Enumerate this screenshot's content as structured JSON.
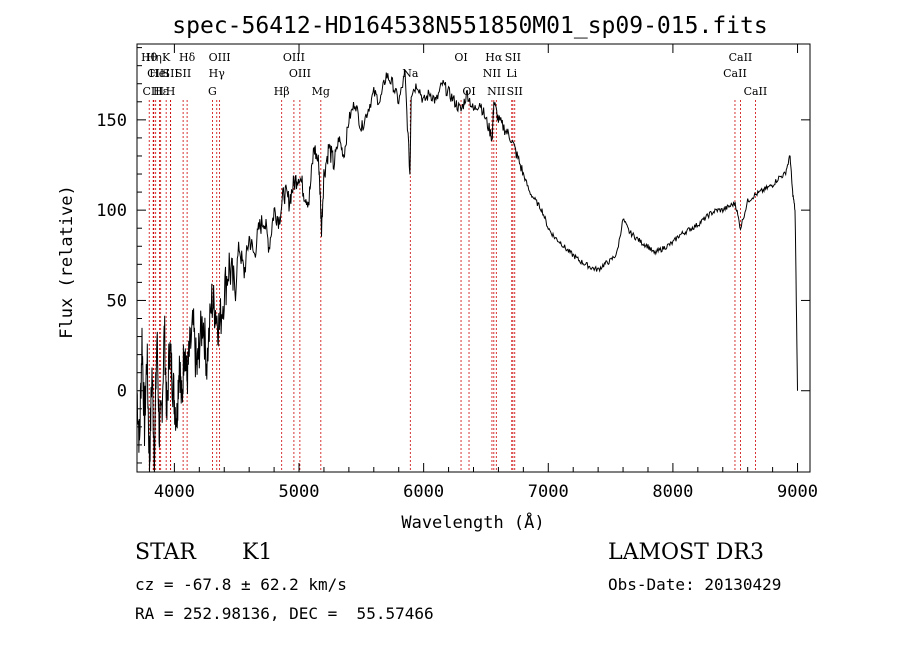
{
  "chart_data": {
    "type": "line",
    "title": "spec-56412-HD164538N551850M01_sp09-015.fits",
    "xlabel": "Wavelength (Å)",
    "ylabel": "Flux (relative)",
    "xlim": [
      3700,
      9100
    ],
    "ylim": [
      -45,
      192
    ],
    "xticks": [
      4000,
      5000,
      6000,
      7000,
      8000,
      9000
    ],
    "yticks": [
      0,
      50,
      100,
      150
    ],
    "grid": false,
    "line_color": "#000000",
    "marker_line_color": "#cc0000",
    "series": [
      {
        "x": [
          3700,
          3720,
          3740,
          3760,
          3780,
          3800,
          3820,
          3840,
          3860,
          3880,
          3900,
          3920,
          3940,
          3960,
          3980,
          4000,
          4020,
          4040,
          4060,
          4080,
          4100,
          4120,
          4150,
          4180,
          4200,
          4230,
          4260,
          4300,
          4330,
          4360,
          4400,
          4440,
          4480,
          4520,
          4560,
          4600,
          4640,
          4680,
          4720,
          4760,
          4800,
          4840,
          4880,
          4920,
          4960,
          5000,
          5040,
          5080,
          5120,
          5160,
          5180,
          5200,
          5240,
          5280,
          5320,
          5360,
          5400,
          5450,
          5500,
          5550,
          5600,
          5650,
          5700,
          5750,
          5800,
          5850,
          5890,
          5900,
          5950,
          6000,
          6050,
          6100,
          6150,
          6200,
          6250,
          6300,
          6350,
          6400,
          6450,
          6500,
          6550,
          6563,
          6600,
          6650,
          6700,
          6750,
          6800,
          6850,
          6900,
          6950,
          7000,
          7050,
          7100,
          7150,
          7200,
          7250,
          7300,
          7350,
          7400,
          7450,
          7500,
          7550,
          7600,
          7650,
          7700,
          7750,
          7800,
          7850,
          7900,
          7950,
          8000,
          8050,
          8100,
          8150,
          8200,
          8250,
          8300,
          8350,
          8400,
          8450,
          8500,
          8542,
          8600,
          8650,
          8700,
          8750,
          8800,
          8850,
          8900,
          8940,
          8960,
          8980,
          9000
        ],
        "y": [
          0,
          -30,
          30,
          -20,
          20,
          -40,
          10,
          -35,
          30,
          -25,
          -10,
          35,
          -15,
          25,
          10,
          -5,
          -15,
          20,
          -10,
          30,
          5,
          20,
          35,
          10,
          25,
          40,
          15,
          50,
          45,
          35,
          55,
          70,
          55,
          80,
          65,
          85,
          75,
          90,
          95,
          80,
          100,
          95,
          110,
          105,
          115,
          120,
          110,
          105,
          135,
          125,
          90,
          120,
          135,
          125,
          140,
          130,
          150,
          160,
          145,
          155,
          165,
          160,
          175,
          170,
          160,
          175,
          120,
          165,
          170,
          160,
          165,
          160,
          170,
          165,
          160,
          155,
          165,
          155,
          160,
          150,
          140,
          160,
          150,
          145,
          140,
          130,
          120,
          110,
          105,
          100,
          90,
          85,
          82,
          78,
          75,
          72,
          70,
          68,
          67,
          70,
          72,
          76,
          95,
          88,
          85,
          82,
          80,
          76,
          78,
          80,
          82,
          86,
          88,
          90,
          92,
          95,
          98,
          100,
          100,
          102,
          104,
          90,
          105,
          108,
          110,
          112,
          114,
          118,
          120,
          130,
          110,
          100,
          0
        ]
      }
    ],
    "line_markers": [
      {
        "label": "Hθ",
        "x": 3798,
        "row": 1
      },
      {
        "label": "CII",
        "x": 3850,
        "row": 2
      },
      {
        "label": "CIII",
        "x": 3830,
        "row": 3
      },
      {
        "label": "Hε",
        "x": 3890,
        "row": 3
      },
      {
        "label": "HeI",
        "x": 3880,
        "row": 2
      },
      {
        "label": "K",
        "x": 3934,
        "row": 1
      },
      {
        "label": "SII",
        "x": 3970,
        "row": 2
      },
      {
        "label": "Hη",
        "x": 3835,
        "row": 1
      },
      {
        "label": "H",
        "x": 3969,
        "row": 3
      },
      {
        "label": "Hδ",
        "x": 4102,
        "row": 1
      },
      {
        "label": "SII",
        "x": 4070,
        "row": 2
      },
      {
        "label": "OIII",
        "x": 4363,
        "row": 1
      },
      {
        "label": "Hγ",
        "x": 4340,
        "row": 2
      },
      {
        "label": "G",
        "x": 4305,
        "row": 3
      },
      {
        "label": "Hβ",
        "x": 4861,
        "row": 3
      },
      {
        "label": "OIII",
        "x": 4959,
        "row": 1
      },
      {
        "label": "OIII",
        "x": 5007,
        "row": 2
      },
      {
        "label": "Mg",
        "x": 5175,
        "row": 3
      },
      {
        "label": "Na",
        "x": 5893,
        "row": 2
      },
      {
        "label": "OI",
        "x": 6300,
        "row": 1
      },
      {
        "label": "OI",
        "x": 6364,
        "row": 3
      },
      {
        "label": "Hα",
        "x": 6563,
        "row": 1
      },
      {
        "label": "NII",
        "x": 6548,
        "row": 2
      },
      {
        "label": "NII",
        "x": 6583,
        "row": 3
      },
      {
        "label": "SII",
        "x": 6716,
        "row": 1
      },
      {
        "label": "Li",
        "x": 6707,
        "row": 2
      },
      {
        "label": "SII",
        "x": 6731,
        "row": 3
      },
      {
        "label": "CaII",
        "x": 8542,
        "row": 1
      },
      {
        "label": "CaII",
        "x": 8498,
        "row": 2
      },
      {
        "label": "CaII",
        "x": 8662,
        "row": 3
      }
    ]
  },
  "info": {
    "object_class": "STAR",
    "subclass": "K1",
    "redshift": "cz = -67.8 ± 62.2 km/s",
    "coords": "RA = 252.98136, DEC =  55.57466",
    "survey": "LAMOST DR3",
    "obs_date": "Obs-Date: 20130429"
  }
}
